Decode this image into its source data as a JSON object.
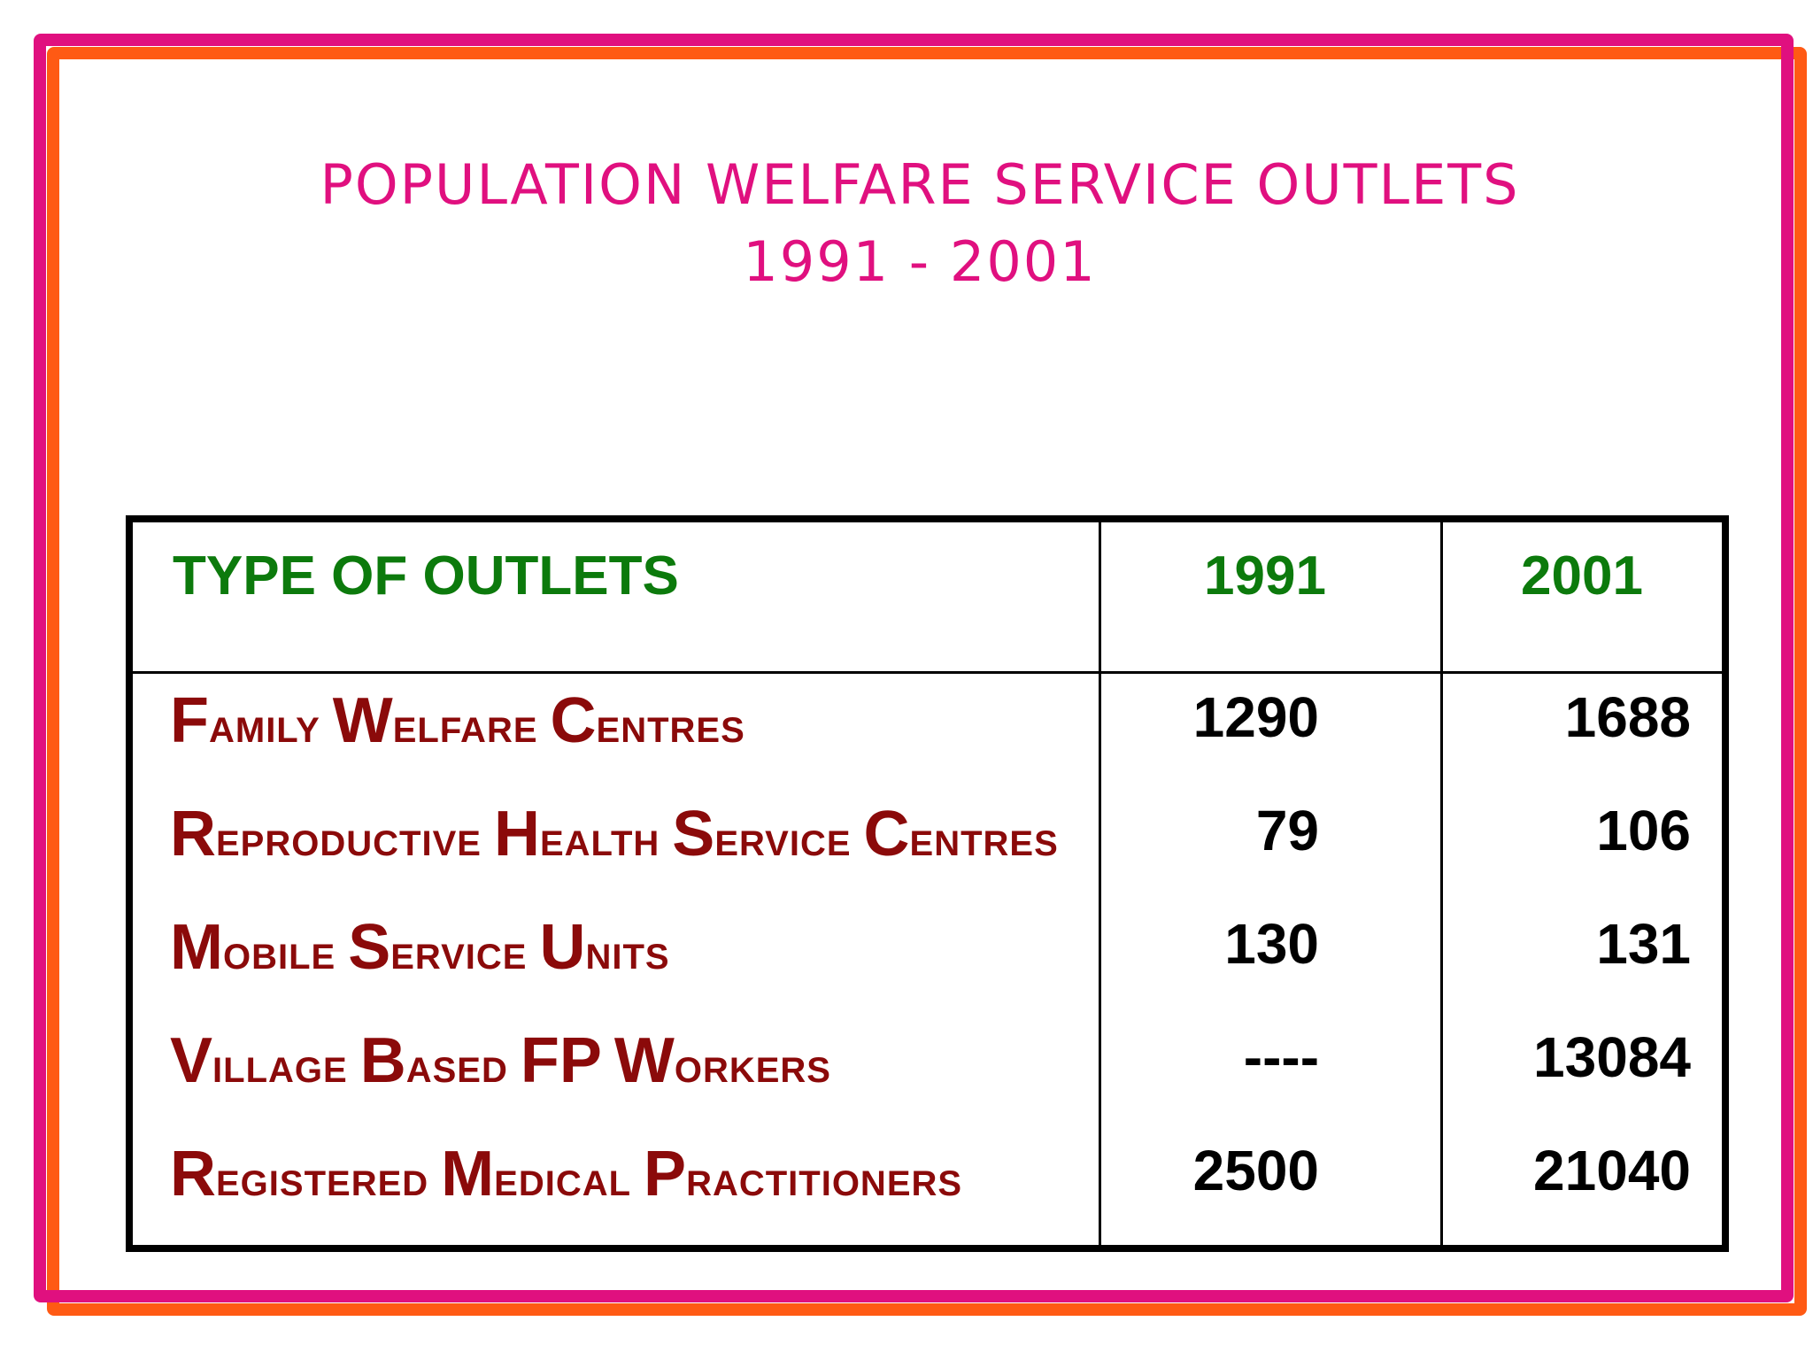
{
  "slide": {
    "title_line1": "POPULATION WELFARE SERVICE OUTLETS",
    "title_line2": "1991 - 2001"
  },
  "table": {
    "headers": {
      "type": "TYPE OF OUTLETS",
      "year1": "1991",
      "year2": "2001"
    },
    "rows": [
      {
        "words": [
          {
            "cap": "F",
            "rest": "AMILY"
          },
          {
            "cap": "W",
            "rest": "ELFARE"
          },
          {
            "cap": "C",
            "rest": "ENTRES"
          }
        ],
        "v1991": "1290",
        "v2001": "1688"
      },
      {
        "words": [
          {
            "cap": "R",
            "rest": "EPRODUCTIVE"
          },
          {
            "cap": "H",
            "rest": "EALTH"
          },
          {
            "cap": "S",
            "rest": "ERVICE"
          },
          {
            "cap": "C",
            "rest": "ENTRES"
          }
        ],
        "v1991": "79",
        "v2001": "106"
      },
      {
        "words": [
          {
            "cap": "M",
            "rest": "OBILE"
          },
          {
            "cap": "S",
            "rest": "ERVICE"
          },
          {
            "cap": "U",
            "rest": "NITS"
          }
        ],
        "v1991": "130",
        "v2001": "131"
      },
      {
        "words": [
          {
            "cap": "V",
            "rest": "ILLAGE"
          },
          {
            "cap": "B",
            "rest": "ASED"
          },
          {
            "cap": "FP",
            "rest": ""
          },
          {
            "cap": "W",
            "rest": "ORKERS"
          }
        ],
        "v1991": "----",
        "v2001": "13084"
      },
      {
        "words": [
          {
            "cap": "R",
            "rest": "EGISTERED"
          },
          {
            "cap": "M",
            "rest": "EDICAL"
          },
          {
            "cap": "P",
            "rest": "RACTITIONERS"
          }
        ],
        "v1991": "2500",
        "v2001": "21040"
      }
    ]
  },
  "colors": {
    "title": "#e0107f",
    "header": "#0c7a0c",
    "row_label": "#8b0a0a",
    "frame_outer": "#ff5a14",
    "frame_inner": "#e0107f"
  }
}
